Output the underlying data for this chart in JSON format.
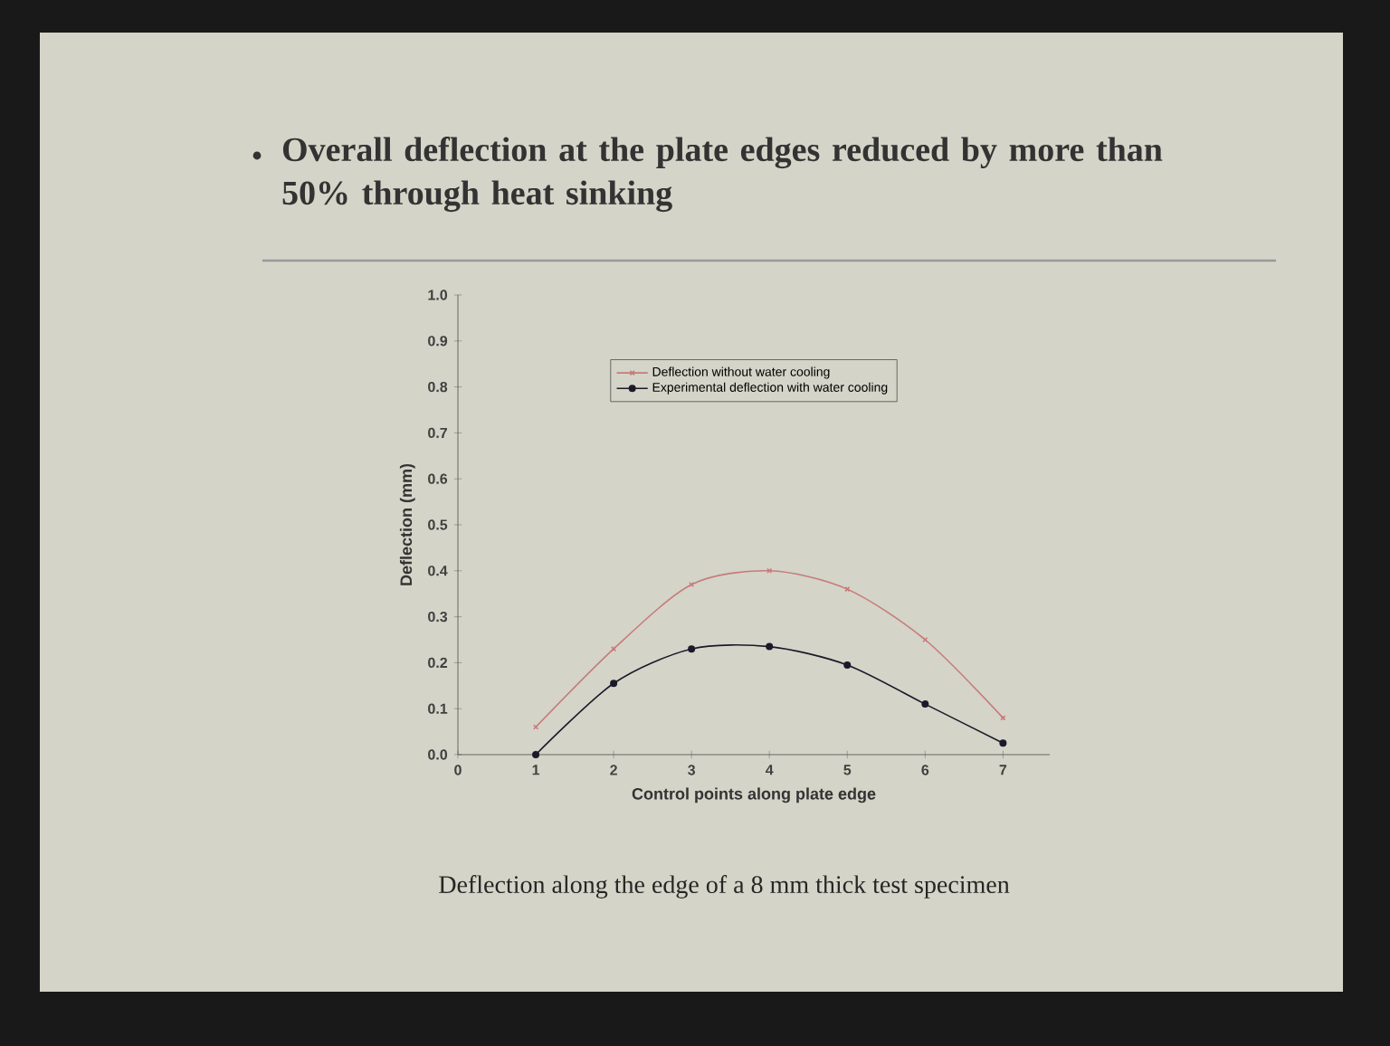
{
  "chart_data": {
    "type": "line",
    "title": "Overall deflection at the plate edges reduced by more than 50% through heat sinking",
    "xlabel": "Control points along plate edge",
    "ylabel": "Deflection (mm)",
    "x": [
      1,
      2,
      3,
      4,
      5,
      6,
      7
    ],
    "series": [
      {
        "name": "Deflection without water cooling",
        "color": "#c87a7a",
        "marker": "cross",
        "values": [
          0.06,
          0.23,
          0.37,
          0.4,
          0.36,
          0.25,
          0.08
        ]
      },
      {
        "name": "Experimental deflection with water cooling",
        "color": "#1a1a2a",
        "marker": "circle",
        "values": [
          0.0,
          0.155,
          0.23,
          0.235,
          0.195,
          0.11,
          0.025
        ]
      }
    ],
    "xlim": [
      0,
      7.6
    ],
    "xticks": [
      0,
      1,
      2,
      3,
      4,
      5,
      6,
      7
    ],
    "ylim": [
      0,
      1
    ],
    "yticks": [
      {
        "value": 0,
        "label": "0.0"
      },
      {
        "value": 0.1,
        "label": "0.1"
      },
      {
        "value": 0.2,
        "label": "0.2"
      },
      {
        "value": 0.3,
        "label": "0.3"
      },
      {
        "value": 0.4,
        "label": "0.4"
      },
      {
        "value": 0.5,
        "label": "0.5"
      },
      {
        "value": 0.6,
        "label": "0.6"
      },
      {
        "value": 0.7,
        "label": "0.7"
      },
      {
        "value": 0.8,
        "label": "0.8"
      },
      {
        "value": 0.9,
        "label": "0.9"
      },
      {
        "value": 1,
        "label": "1.0"
      }
    ],
    "grid": false,
    "legend": "top",
    "line_style": "solid",
    "annotations": [
      "Deflection along the edge of a 8 mm thick test specimen"
    ]
  }
}
